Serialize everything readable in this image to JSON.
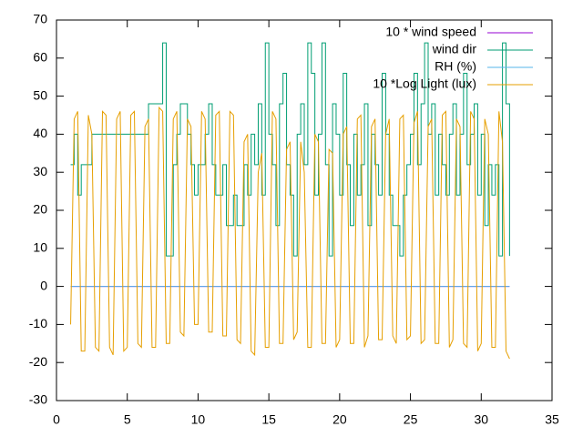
{
  "chart_data": {
    "type": "line",
    "x": [
      1,
      1.25,
      1.5,
      1.75,
      2,
      2.25,
      2.5,
      2.75,
      3,
      3.25,
      3.5,
      3.75,
      4,
      4.25,
      4.5,
      4.75,
      5,
      5.25,
      5.5,
      5.75,
      6,
      6.25,
      6.5,
      6.75,
      7,
      7.25,
      7.5,
      7.75,
      8,
      8.25,
      8.5,
      8.75,
      9,
      9.25,
      9.5,
      9.75,
      10,
      10.25,
      10.5,
      10.75,
      11,
      11.25,
      11.5,
      11.75,
      12,
      12.25,
      12.5,
      12.75,
      13,
      13.25,
      13.5,
      13.75,
      14,
      14.25,
      14.5,
      14.75,
      15,
      15.25,
      15.5,
      15.75,
      16,
      16.25,
      16.5,
      16.75,
      17,
      17.25,
      17.5,
      17.75,
      18,
      18.25,
      18.5,
      18.75,
      19,
      19.25,
      19.5,
      19.75,
      20,
      20.25,
      20.5,
      20.75,
      21,
      21.25,
      21.5,
      21.75,
      22,
      22.25,
      22.5,
      22.75,
      23,
      23.25,
      23.5,
      23.75,
      24,
      24.25,
      24.5,
      24.75,
      25,
      25.25,
      25.5,
      25.75,
      26,
      26.25,
      26.5,
      26.75,
      27,
      27.25,
      27.5,
      27.75,
      28,
      28.25,
      28.5,
      28.75,
      29,
      29.25,
      29.5,
      29.75,
      30,
      30.25,
      30.5,
      30.75,
      31,
      31.25,
      31.5,
      31.75,
      32
    ],
    "series": [
      {
        "name": "10 * wind speed",
        "color": "#9400d3",
        "values": [
          0,
          0,
          0,
          0,
          0,
          0,
          0,
          0,
          0,
          0,
          0,
          0,
          0,
          0,
          0,
          0,
          0,
          0,
          0,
          0,
          0,
          0,
          0,
          0,
          0,
          0,
          0,
          0,
          0,
          0,
          0,
          0,
          0,
          0,
          0,
          0,
          0,
          0,
          0,
          0,
          0,
          0,
          0,
          0,
          0,
          0,
          0,
          0,
          0,
          0,
          0,
          0,
          0,
          0,
          0,
          0,
          0,
          0,
          0,
          0,
          0,
          0,
          0,
          0,
          0,
          0,
          0,
          0,
          0,
          0,
          0,
          0,
          0,
          0,
          0,
          0,
          0,
          0,
          0,
          0,
          0,
          0,
          0,
          0,
          0,
          0,
          0,
          0,
          0,
          0,
          0,
          0,
          0,
          0,
          0,
          0,
          0,
          0,
          0,
          0,
          0,
          0,
          0,
          0,
          0,
          0,
          0,
          0,
          0,
          0,
          0,
          0,
          0,
          0,
          0,
          0,
          0,
          0,
          0,
          0,
          0,
          0,
          0,
          0,
          0
        ]
      },
      {
        "name": "wind dir",
        "color": "#009e73",
        "steps": true,
        "values": [
          32,
          40,
          24,
          32,
          32,
          32,
          40,
          40,
          40,
          40,
          40,
          40,
          40,
          40,
          40,
          40,
          40,
          40,
          40,
          40,
          40,
          40,
          48,
          48,
          48,
          48,
          64,
          8,
          8,
          32,
          40,
          48,
          48,
          40,
          32,
          24,
          32,
          32,
          40,
          48,
          32,
          24,
          24,
          32,
          16,
          16,
          24,
          16,
          16,
          32,
          24,
          40,
          32,
          48,
          24,
          64,
          40,
          32,
          16,
          48,
          56,
          32,
          24,
          8,
          40,
          48,
          32,
          64,
          56,
          24,
          40,
          64,
          32,
          8,
          48,
          40,
          24,
          56,
          32,
          16,
          40,
          24,
          32,
          48,
          16,
          40,
          32,
          24,
          56,
          40,
          24,
          16,
          16,
          8,
          24,
          32,
          40,
          56,
          32,
          48,
          64,
          40,
          48,
          24,
          40,
          32,
          24,
          40,
          48,
          24,
          40,
          56,
          32,
          40,
          48,
          24,
          40,
          16,
          32,
          24,
          32,
          8,
          64,
          48,
          8
        ]
      },
      {
        "name": "RH (%)",
        "color": "#56b4e9",
        "values": [
          0,
          0,
          0,
          0,
          0,
          0,
          0,
          0,
          0,
          0,
          0,
          0,
          0,
          0,
          0,
          0,
          0,
          0,
          0,
          0,
          0,
          0,
          0,
          0,
          0,
          0,
          0,
          0,
          0,
          0,
          0,
          0,
          0,
          0,
          0,
          0,
          0,
          0,
          0,
          0,
          0,
          0,
          0,
          0,
          0,
          0,
          0,
          0,
          0,
          0,
          0,
          0,
          0,
          0,
          0,
          0,
          0,
          0,
          0,
          0,
          0,
          0,
          0,
          0,
          0,
          0,
          0,
          0,
          0,
          0,
          0,
          0,
          0,
          0,
          0,
          0,
          0,
          0,
          0,
          0,
          0,
          0,
          0,
          0,
          0,
          0,
          0,
          0,
          0,
          0,
          0,
          0,
          0,
          0,
          0,
          0,
          0,
          0,
          0,
          0,
          0,
          0,
          0,
          0,
          0,
          0,
          0,
          0,
          0,
          0,
          0,
          0,
          0,
          0,
          0,
          0,
          0,
          0,
          0,
          0,
          0,
          0,
          0,
          0,
          0
        ]
      },
      {
        "name": "10 *Log Light (lux)",
        "color": "#e69f00",
        "values": [
          -10,
          44,
          46,
          -17,
          -17,
          45,
          40,
          -16,
          -17,
          46,
          45,
          -16,
          -18,
          44,
          46,
          -17,
          -16,
          45,
          46,
          -15,
          -16,
          42,
          44,
          -16,
          -16,
          47,
          46,
          -15,
          -15,
          44,
          46,
          -12,
          -13,
          44,
          42,
          -10,
          -10,
          46,
          44,
          -12,
          -12,
          45,
          46,
          -13,
          -13,
          46,
          45,
          -14,
          -15,
          38,
          40,
          -17,
          -18,
          30,
          35,
          -16,
          -16,
          46,
          44,
          -15,
          -15,
          36,
          38,
          -14,
          -12,
          38,
          30,
          -16,
          -16,
          40,
          38,
          -15,
          -15,
          36,
          35,
          -16,
          -14,
          40,
          42,
          -15,
          -15,
          44,
          45,
          -16,
          -13,
          42,
          44,
          -14,
          -14,
          40,
          44,
          -13,
          -15,
          44,
          45,
          -14,
          -13,
          43,
          46,
          -15,
          -14,
          42,
          44,
          -15,
          -15,
          45,
          46,
          -16,
          -14,
          44,
          42,
          -15,
          -16,
          46,
          44,
          -17,
          -15,
          44,
          40,
          -16,
          -16,
          46,
          38,
          -17,
          -19
        ]
      }
    ],
    "xlim": [
      0,
      35
    ],
    "xticks": [
      0,
      5,
      10,
      15,
      20,
      25,
      30,
      35
    ],
    "ylim": [
      -30,
      70
    ],
    "yticks": [
      -30,
      -20,
      -10,
      0,
      10,
      20,
      30,
      40,
      50,
      60,
      70
    ],
    "legend": "top-right"
  }
}
